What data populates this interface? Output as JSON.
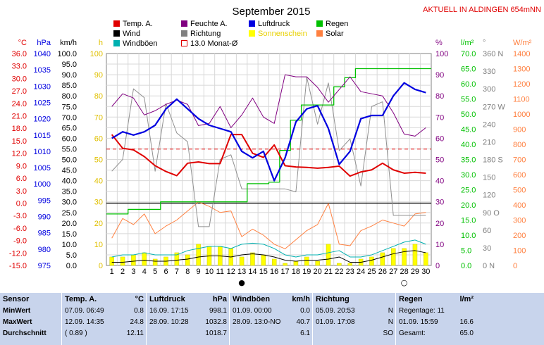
{
  "title": "September 2015",
  "subtitle": "AKTUELL IN ALDINGEN 654mNN",
  "legend": [
    {
      "label": "Temp. A.",
      "color": "#e00000",
      "marker": "fill"
    },
    {
      "label": "Feuchte A.",
      "color": "#800080",
      "marker": "fill"
    },
    {
      "label": "Luftdruck",
      "color": "#0000e0",
      "marker": "fill"
    },
    {
      "label": "Regen",
      "color": "#00c000",
      "marker": "fill"
    },
    {
      "label": "Wind",
      "color": "#000000",
      "marker": "fill"
    },
    {
      "label": "Richtung",
      "color": "#808080",
      "marker": "fill"
    },
    {
      "label": "Sonnenschein",
      "color": "#ffff00",
      "marker": "fill"
    },
    {
      "label": "Solar",
      "color": "#ff8040",
      "marker": "fill"
    },
    {
      "label": "Windböen",
      "color": "#00b0b0",
      "marker": "fill"
    },
    {
      "label": "13.0 Monat-Ø",
      "color": "#e00000",
      "marker": "outline"
    }
  ],
  "axes": {
    "temp": {
      "unit": "°C",
      "color": "#e00000",
      "ticks": [
        "36.0",
        "33.0",
        "30.0",
        "27.0",
        "24.0",
        "21.0",
        "18.0",
        "15.0",
        "12.0",
        "9.0",
        "6.0",
        "3.0",
        "0.0",
        "-3.0",
        "-6.0",
        "-9.0",
        "-12.0",
        "-15.0"
      ]
    },
    "hpa": {
      "unit": "hPa",
      "color": "#0000e0",
      "ticks": [
        "1040",
        "1035",
        "1030",
        "1025",
        "1020",
        "1015",
        "1010",
        "1005",
        "1000",
        "995",
        "990",
        "985",
        "980",
        "975"
      ]
    },
    "kmh": {
      "unit": "km/h",
      "color": "#000000",
      "ticks": [
        "100.0",
        "95.0",
        "90.0",
        "85.0",
        "80.0",
        "75.0",
        "70.0",
        "65.0",
        "60.0",
        "55.0",
        "50.0",
        "45.0",
        "40.0",
        "35.0",
        "30.0",
        "25.0",
        "20.0",
        "15.0",
        "10.0",
        "5.0",
        "0.0"
      ]
    },
    "hours": {
      "unit": "h",
      "color": "#e0c000",
      "ticks": [
        "100",
        "90",
        "80",
        "70",
        "60",
        "50",
        "40",
        "30",
        "20",
        "10",
        "0"
      ]
    },
    "pct": {
      "unit": "%",
      "color": "#800080",
      "ticks": [
        "100",
        "90",
        "80",
        "70",
        "60",
        "50",
        "40",
        "30",
        "20",
        "10",
        "0"
      ]
    },
    "rain": {
      "unit": "l/m²",
      "color": "#00c000",
      "ticks": [
        "70.0",
        "65.0",
        "60.0",
        "55.0",
        "50.0",
        "45.0",
        "40.0",
        "35.0",
        "30.0",
        "25.0",
        "20.0",
        "15.0",
        "10.0",
        "5.0",
        "0.0"
      ]
    },
    "dir": {
      "unit": "°",
      "color": "#808080",
      "ticks": [
        "360 N",
        "330",
        "300",
        "270 W",
        "240",
        "210",
        "180 S",
        "150",
        "120",
        "90 O",
        "60",
        "30",
        "0 N"
      ]
    },
    "solar": {
      "unit": "W/m²",
      "color": "#ff8040",
      "ticks": [
        "1400",
        "1300",
        "1200",
        "1100",
        "1000",
        "900",
        "800",
        "700",
        "600",
        "500",
        "400",
        "300",
        "200",
        "100",
        "0"
      ]
    }
  },
  "chart_data": {
    "type": "line",
    "title": "September 2015",
    "x": [
      1,
      2,
      3,
      4,
      5,
      6,
      7,
      8,
      9,
      10,
      11,
      12,
      13,
      14,
      15,
      16,
      17,
      18,
      19,
      20,
      21,
      22,
      23,
      24,
      25,
      26,
      27,
      28,
      29,
      30
    ],
    "xlim": [
      0.5,
      30.5
    ],
    "month_avg_temp": 13.0,
    "series": [
      {
        "name": "Temp. A.",
        "axis": "temp",
        "ylim": [
          -15,
          36
        ],
        "values": [
          16.5,
          13.2,
          12.8,
          11.2,
          9.0,
          7.6,
          6.6,
          9.6,
          9.9,
          9.5,
          9.5,
          16.5,
          16.5,
          12.0,
          11.0,
          14.0,
          9.0,
          8.7,
          8.6,
          8.4,
          8.6,
          8.9,
          6.5,
          7.5,
          8.0,
          9.6,
          8.0,
          7.2,
          7.4,
          7.2
        ]
      },
      {
        "name": "Feuchte A.",
        "axis": "pct",
        "ylim": [
          0,
          100
        ],
        "values": [
          75,
          81,
          79,
          71,
          73,
          76,
          78,
          76,
          66,
          67,
          75,
          65,
          71,
          79,
          70,
          67,
          90,
          89,
          89,
          84,
          77,
          83,
          89,
          82,
          81,
          80,
          72,
          62,
          61,
          65
        ]
      },
      {
        "name": "Luftdruck",
        "axis": "hpa",
        "ylim": [
          975,
          1040
        ],
        "values": [
          1014,
          1016,
          1015,
          1016,
          1018,
          1023,
          1026,
          1023,
          1020,
          1018,
          1017,
          1016,
          1010,
          1008,
          1010,
          1001,
          1008,
          1019,
          1023,
          1024,
          1017,
          1006,
          1010,
          1020,
          1021,
          1021,
          1027,
          1031,
          1029,
          1028
        ]
      },
      {
        "name": "Regen",
        "axis": "rain",
        "ylim": [
          0,
          70
        ],
        "values": [
          17,
          17,
          18.5,
          18.5,
          18.5,
          21,
          21,
          21,
          21,
          21,
          21,
          21,
          21,
          27,
          27,
          27.5,
          38,
          48,
          53,
          53,
          53,
          59,
          62,
          65,
          65,
          65,
          65,
          65,
          65,
          65
        ]
      },
      {
        "name": "Wind",
        "axis": "kmh",
        "ylim": [
          0,
          100
        ],
        "values": [
          1.5,
          1.5,
          2,
          2.5,
          2,
          2,
          2.5,
          3,
          4,
          4.5,
          4.5,
          4,
          5,
          5.5,
          5,
          4,
          2.5,
          2,
          2.5,
          2.5,
          3,
          4,
          1.5,
          1.5,
          2.5,
          4,
          5.5,
          6.5,
          7,
          6
        ]
      },
      {
        "name": "Richtung",
        "axis": "dir",
        "ylim": [
          0,
          360
        ],
        "values": [
          160,
          180,
          300,
          285,
          160,
          275,
          225,
          210,
          66,
          66,
          180,
          188,
          130,
          130,
          130,
          130,
          130,
          125,
          320,
          240,
          310,
          195,
          215,
          135,
          270,
          278,
          85,
          85,
          85,
          85
        ]
      },
      {
        "name": "Windböen",
        "axis": "kmh",
        "ylim": [
          0,
          100
        ],
        "values": [
          4,
          5,
          5,
          6,
          5,
          5,
          5,
          7,
          8,
          9,
          9,
          8,
          10,
          10.5,
          10,
          8,
          5,
          4,
          5,
          5,
          6,
          7,
          4,
          4,
          5,
          7,
          9,
          11,
          12,
          10
        ]
      },
      {
        "name": "Solar",
        "axis": "solar",
        "ylim": [
          0,
          1400
        ],
        "values": [
          180,
          310,
          270,
          340,
          210,
          260,
          300,
          360,
          420,
          390,
          350,
          360,
          190,
          240,
          200,
          140,
          110,
          170,
          230,
          270,
          410,
          140,
          130,
          230,
          260,
          300,
          280,
          260,
          340,
          350
        ]
      },
      {
        "name": "Sonnenschein",
        "type": "bar",
        "axis": "hours",
        "ylim": [
          0,
          100
        ],
        "values": [
          4,
          4,
          5,
          6,
          3,
          4,
          6,
          5,
          10,
          9,
          9,
          8,
          4,
          6,
          5,
          3,
          1,
          2,
          4,
          2,
          10,
          1,
          1,
          3,
          4,
          6,
          8,
          8,
          10,
          6
        ]
      }
    ],
    "markers": [
      {
        "x": 13,
        "symbol": "●"
      },
      {
        "x": 28,
        "symbol": "○"
      }
    ]
  },
  "stats": {
    "columns": [
      {
        "header": "Sensor",
        "unit": "",
        "rows": [
          {
            "label": "MinWert",
            "value": ""
          },
          {
            "label": "MaxWert",
            "value": ""
          },
          {
            "label": "Durchschnitt",
            "value": ""
          }
        ]
      },
      {
        "header": "Temp. A.",
        "unit": "°C",
        "rows": [
          {
            "label": "07.09.  06:49",
            "value": "0.8"
          },
          {
            "label": "12.09.  14:35",
            "value": "24.8"
          },
          {
            "label": "( 0.89 )",
            "value": "12.11"
          }
        ]
      },
      {
        "header": "Luftdruck",
        "unit": "hPa",
        "rows": [
          {
            "label": "16.09.  17:15",
            "value": "998.1"
          },
          {
            "label": "28.09.  10:28",
            "value": "1032.8"
          },
          {
            "label": "",
            "value": "1018.7"
          }
        ]
      },
      {
        "header": "Windböen",
        "unit": "km/h",
        "rows": [
          {
            "label": "01.09.  00:00",
            "value": "0.0"
          },
          {
            "label": "28.09.  13:0-NO",
            "value": "40.7"
          },
          {
            "label": "",
            "value": "6.1"
          }
        ]
      },
      {
        "header": "Richtung",
        "unit": "",
        "rows": [
          {
            "label": "05.09.  20:53",
            "value": "N"
          },
          {
            "label": "01.09.  17:08",
            "value": "N"
          },
          {
            "label": "",
            "value": "SO"
          }
        ]
      },
      {
        "header": "Regen",
        "unit": "l/m²",
        "rows": [
          {
            "label": "Regentage: 11",
            "value": ""
          },
          {
            "label": "01.09.  15:59",
            "value": "16.6"
          },
          {
            "label": "Gesamt:",
            "value": "65.0"
          }
        ]
      }
    ]
  }
}
